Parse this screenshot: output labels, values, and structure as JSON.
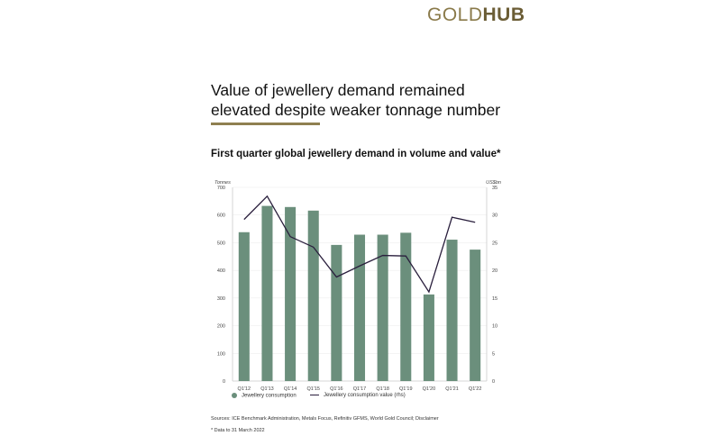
{
  "logo": {
    "gold": "GOLD",
    "hub": "HUB"
  },
  "title": "Value of jewellery demand remained elevated despite weaker tonnage number",
  "subtitle": "First quarter global jewellery demand in volume and value*",
  "chart_data": {
    "type": "bar",
    "title": "First quarter global jewellery demand in volume and value*",
    "categories": [
      "Q1'12",
      "Q1'13",
      "Q1'14",
      "Q1'15",
      "Q1'16",
      "Q1'17",
      "Q1'18",
      "Q1'19",
      "Q1'20",
      "Q1'21",
      "Q1'22"
    ],
    "series": [
      {
        "name": "Jewellery consumption",
        "type": "bar",
        "axis": "left",
        "color": "#6b8f7c",
        "values": [
          538,
          633,
          629,
          616,
          492,
          529,
          529,
          536,
          313,
          511,
          475
        ]
      },
      {
        "name": "Jewellery consumption value (rhs)",
        "type": "line",
        "axis": "right",
        "color": "#2a1f3d",
        "values": [
          29.2,
          33.4,
          26.1,
          24.2,
          18.8,
          20.8,
          22.7,
          22.6,
          16.1,
          29.6,
          28.7
        ]
      }
    ],
    "ylabel": "Tonnes",
    "y2label": "US$bn",
    "ylim": [
      0,
      700
    ],
    "y2lim": [
      0,
      35
    ],
    "yticks": [
      0,
      100,
      200,
      300,
      400,
      500,
      600,
      700
    ],
    "y2ticks": [
      0,
      5,
      10,
      15,
      20,
      25,
      30,
      35
    ],
    "grid": true,
    "legend": "bottom"
  },
  "sources": "Sources: ICE Benchmark Administration, Metals Focus, Refinitiv GFMS, World Gold Council; Disclaimer",
  "footnote": "* Data to 31 March 2022"
}
